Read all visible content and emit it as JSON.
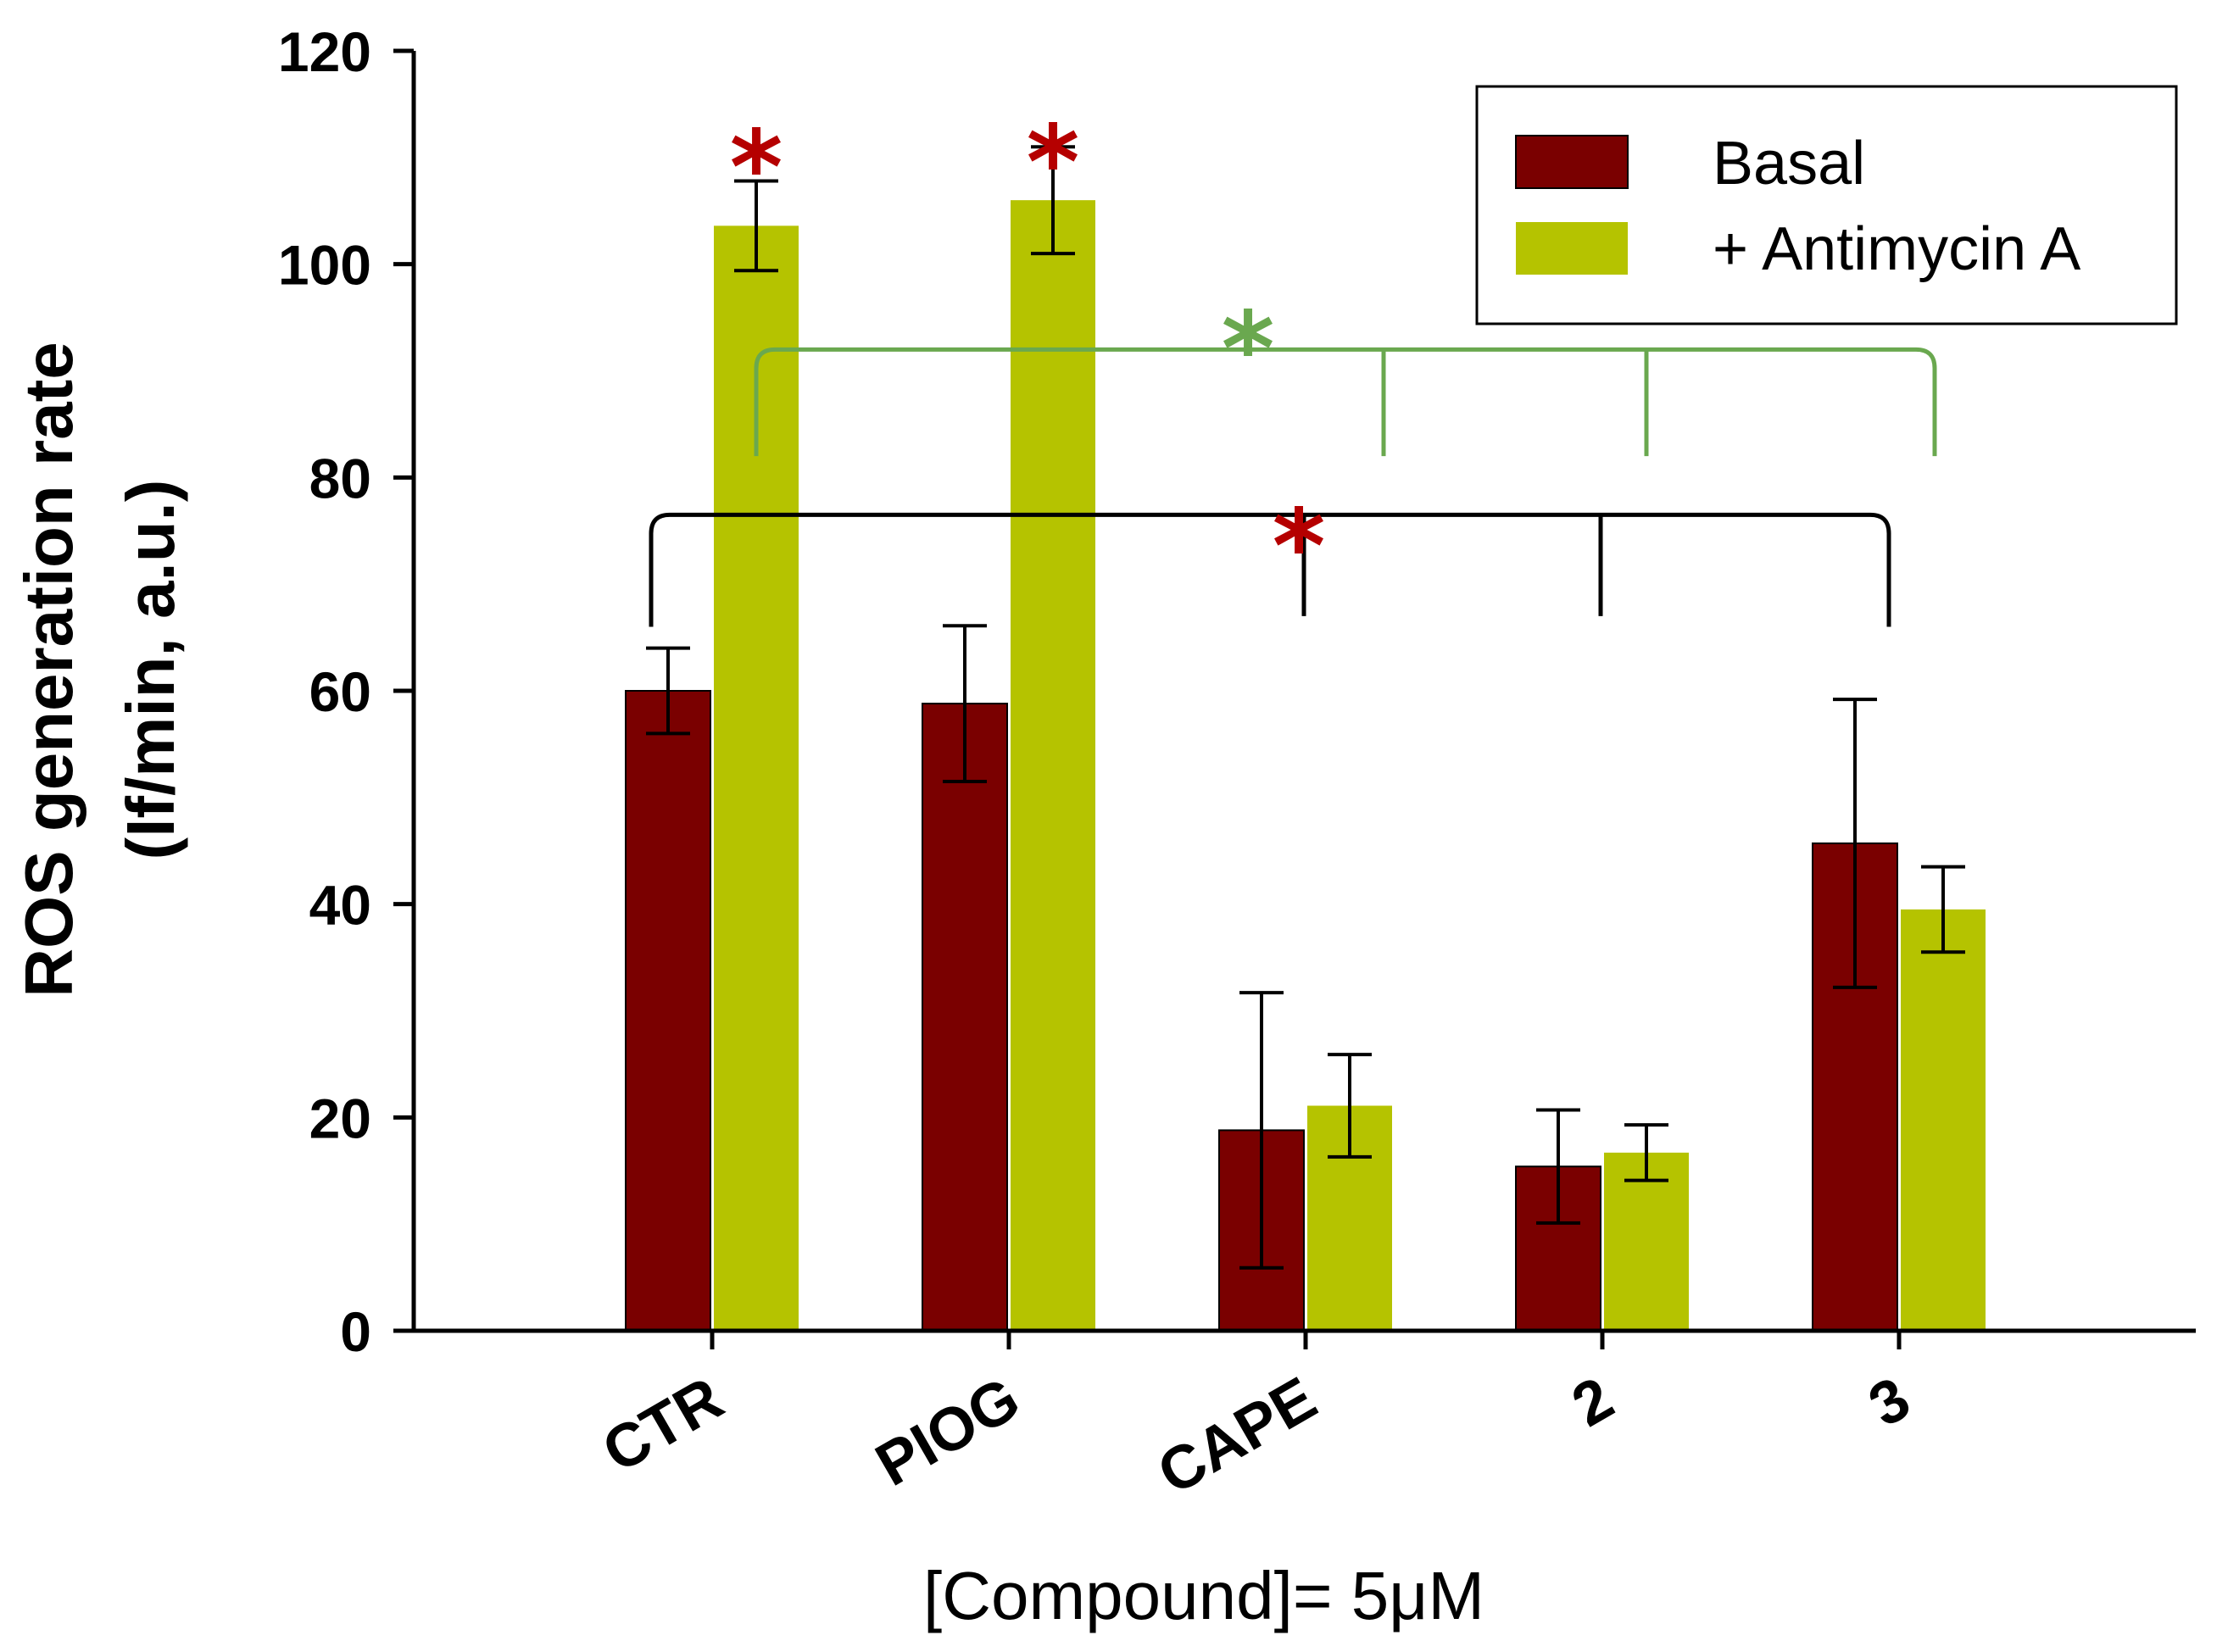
{
  "chart_data": {
    "type": "bar",
    "categories": [
      "CTR",
      "PIOG",
      "CAPE",
      "2",
      "3"
    ],
    "series": [
      {
        "name": "Basal",
        "color": "#7a0000",
        "values": [
          60,
          58.8,
          18.8,
          15.4,
          45.7
        ],
        "errors": [
          4.0,
          7.3,
          12.9,
          5.3,
          13.5
        ]
      },
      {
        "name": "+ Antimycin A",
        "color": "#b5c300",
        "values": [
          103.6,
          106,
          21.1,
          16.7,
          39.5
        ],
        "errors": [
          4.2,
          5.0,
          4.8,
          2.6,
          4.0
        ]
      }
    ],
    "xlabel": "[Compound]= 5μM",
    "ylabel_line1": "ROS generation rate",
    "ylabel_line2": "(If/min, a.u.)",
    "ylim": [
      0,
      120
    ],
    "yticks": [
      0,
      20,
      40,
      60,
      80,
      100,
      120
    ],
    "legend_position": "top-right",
    "grid": false,
    "significance": [
      {
        "symbol": "*",
        "color": "#b50000",
        "target": "CTR + Antimycin A"
      },
      {
        "symbol": "*",
        "color": "#b50000",
        "target": "PIOG + Antimycin A"
      },
      {
        "symbol": "*",
        "color": "#6aa84f",
        "target": "CTR + Antimycin A vs CAPE, 2, 3 (+ Antimycin A)"
      },
      {
        "symbol": "*",
        "color": "#b50000",
        "target": "CTR Basal vs CAPE, 2, 3 (Basal)"
      }
    ]
  }
}
